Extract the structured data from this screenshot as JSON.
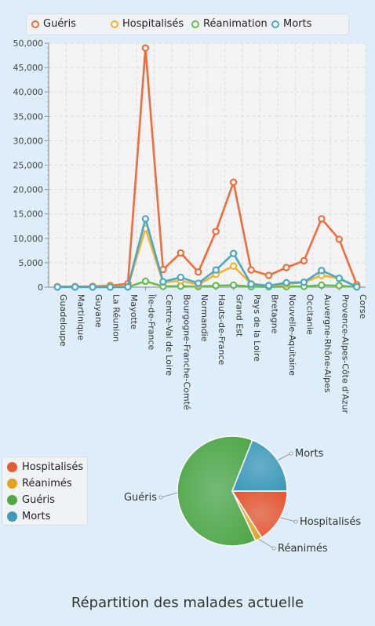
{
  "line_legend": [
    {
      "label": "Guéris",
      "color": "#f26b3a"
    },
    {
      "label": "Hospitalisés",
      "color": "#f2b233"
    },
    {
      "label": "Réanimation",
      "color": "#66bb55"
    },
    {
      "label": "Morts",
      "color": "#4aa8c5"
    }
  ],
  "chart_data": [
    {
      "type": "line",
      "categories": [
        "Guadeloupe",
        "Martinique",
        "Guyane",
        "La Réunion",
        "Mayotte",
        "Île-de-France",
        "Centre-Val de Loire",
        "Bourgogne-Franche-Comté",
        "Normandie",
        "Hauts-de-France",
        "Grand Est",
        "Pays de la Loire",
        "Bretagne",
        "Nouvelle-Aquitaine",
        "Occitanie",
        "Auvergne-Rhône-Alpes",
        "Provence-Alpes-Côte d'Azur",
        "Corse"
      ],
      "yticks": [
        "0",
        "5,000",
        "10,000",
        "15,000",
        "20,000",
        "25,000",
        "30,000",
        "35,000",
        "40,000",
        "45,000",
        "50,000"
      ],
      "ylim": [
        0,
        50000
      ],
      "grid": true,
      "legend_position": "top",
      "series": [
        {
          "name": "Guéris",
          "color": "#f26b3a",
          "values": [
            100,
            100,
            150,
            300,
            700,
            49000,
            3600,
            7000,
            3100,
            11400,
            21500,
            3500,
            2400,
            4000,
            5400,
            14000,
            9800,
            500
          ]
        },
        {
          "name": "Hospitalisés",
          "color": "#f2b233",
          "values": [
            50,
            50,
            50,
            100,
            100,
            12000,
            1000,
            1300,
            500,
            2600,
            4300,
            700,
            300,
            600,
            1000,
            2400,
            1800,
            50
          ]
        },
        {
          "name": "Réanimation",
          "color": "#66bb55",
          "values": [
            20,
            20,
            20,
            30,
            30,
            1200,
            150,
            200,
            100,
            300,
            400,
            100,
            50,
            100,
            150,
            400,
            300,
            20
          ]
        },
        {
          "name": "Morts",
          "color": "#4aa8c5",
          "values": [
            30,
            30,
            20,
            10,
            40,
            14000,
            1100,
            2000,
            800,
            3500,
            6900,
            600,
            300,
            900,
            1000,
            3400,
            1800,
            50
          ]
        }
      ]
    },
    {
      "type": "pie",
      "title": "Répartition des malades actuelle",
      "legend_position": "left",
      "slices": [
        {
          "label": "Hospitalisés",
          "value": 16,
          "color": "#e65a35"
        },
        {
          "label": "Réanimés",
          "value": 2,
          "color": "#e0a422"
        },
        {
          "label": "Guéris",
          "value": 63,
          "color": "#52a84a"
        },
        {
          "label": "Morts",
          "value": 19,
          "color": "#3f9ab8"
        }
      ]
    }
  ]
}
